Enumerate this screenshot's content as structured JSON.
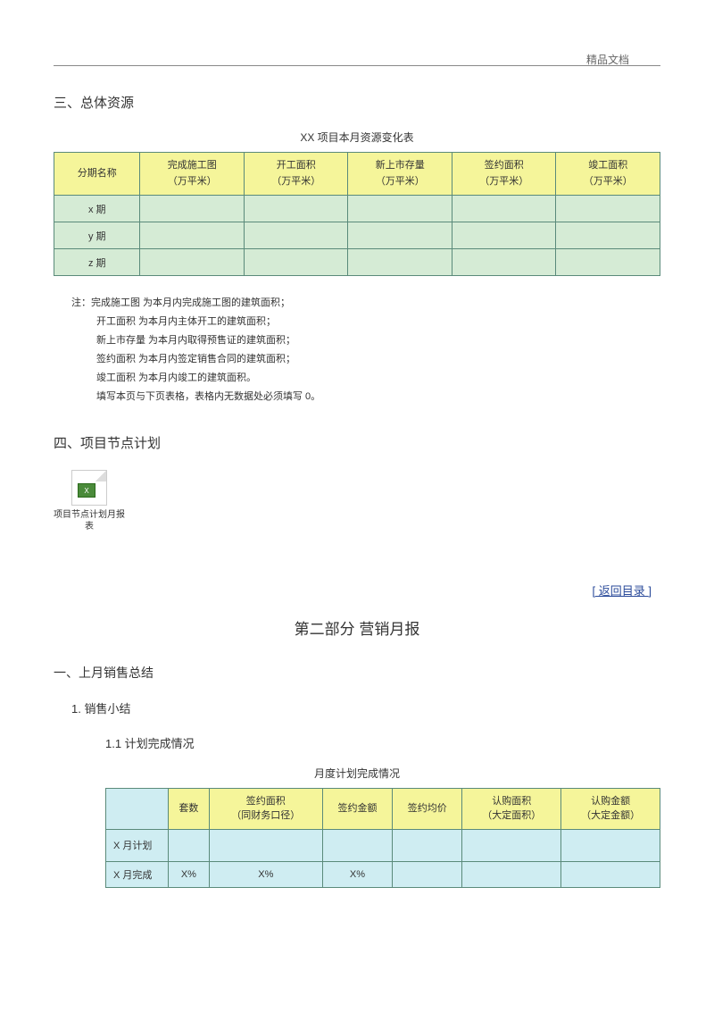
{
  "header": {
    "right_text": "精品文档"
  },
  "section3": {
    "heading": "三、总体资源",
    "table_title": "XX 项目本月资源变化表",
    "headers": [
      "分期名称",
      "完成施工图\n（万平米）",
      "开工面积\n（万平米）",
      "新上市存量\n（万平米）",
      "签约面积\n（万平米）",
      "竣工面积\n（万平米）"
    ],
    "rows": [
      {
        "label": "x 期",
        "cells": [
          "",
          "",
          "",
          "",
          ""
        ]
      },
      {
        "label": "y 期",
        "cells": [
          "",
          "",
          "",
          "",
          ""
        ]
      },
      {
        "label": "z 期",
        "cells": [
          "",
          "",
          "",
          "",
          ""
        ]
      }
    ],
    "notes": [
      "注：完成施工图   为本月内完成施工图的建筑面积；",
      "开工面积  为本月内主体开工的建筑面积；",
      "新上市存量   为本月内取得预售证的建筑面积；",
      "签约面积  为本月内签定销售合同的建筑面积；",
      "竣工面积  为本月内竣工的建筑面积。",
      "填写本页与下页表格，表格内无数据处必须填写        0。"
    ]
  },
  "section4": {
    "heading": "四、项目节点计划",
    "excel_label": "项目节点计划月报表"
  },
  "link": {
    "text": "[ 返回目录 ]"
  },
  "part2": {
    "title": "第二部分   营销月报",
    "h1": "一、上月销售总结",
    "h2": "1.   销售小结",
    "h3": "1.1   计划完成情况",
    "table_title": "月度计划完成情况",
    "headers": [
      "",
      "套数",
      "签约面积\n（同财务口径）",
      "签约金额",
      "签约均价",
      "认购面积\n（大定面积）",
      "认购金额\n（大定金额）"
    ],
    "rows": [
      {
        "label": "X 月计划",
        "cells": [
          "",
          "",
          "",
          "",
          "",
          ""
        ]
      },
      {
        "label": "X 月完成",
        "cells": [
          "X%",
          "X%",
          "X%",
          "",
          "",
          ""
        ]
      }
    ]
  },
  "colors": {
    "header_yellow": "#f5f59a",
    "body_green": "#d5ebd5",
    "body_cyan": "#cfedf2",
    "border": "#5a8a7a",
    "link": "#2a4a9a"
  }
}
